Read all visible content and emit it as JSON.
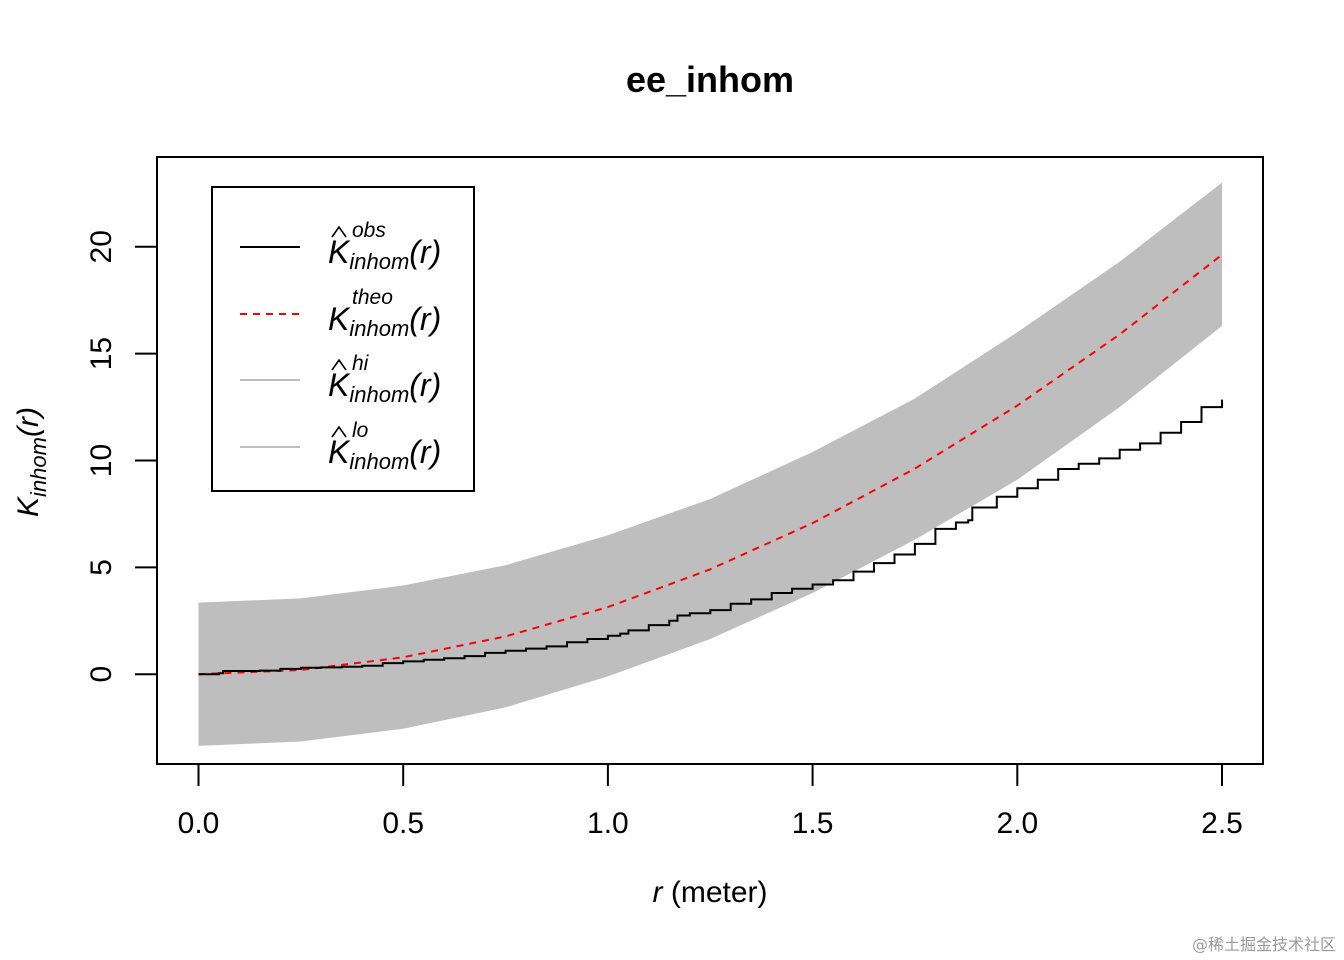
{
  "chart_data": {
    "type": "line",
    "title": "ee_inhom",
    "xlabel_var": "r",
    "xlabel_unit": " (meter)",
    "ylabel_main": "K",
    "ylabel_sub": "inhom",
    "ylabel_arg": "(r)",
    "xlim": [
      0,
      2.5
    ],
    "ylim": [
      -4.2,
      24.2
    ],
    "x_ticks": [
      0,
      0.5,
      1.0,
      1.5,
      2.0,
      2.5
    ],
    "x_tick_labels": [
      "0.0",
      "0.5",
      "1.0",
      "1.5",
      "2.0",
      "2.5"
    ],
    "y_ticks": [
      0,
      5,
      10,
      15,
      20
    ],
    "y_tick_labels": [
      "0",
      "5",
      "10",
      "15",
      "20"
    ],
    "band_color": "#bebebe",
    "legend_position": "top-left",
    "series": [
      {
        "name": "obs",
        "color": "#000000",
        "dash": "solid",
        "x": [
          0,
          0.04,
          0.05,
          0.06,
          0.1,
          0.15,
          0.2,
          0.25,
          0.3,
          0.35,
          0.4,
          0.45,
          0.5,
          0.55,
          0.6,
          0.65,
          0.7,
          0.75,
          0.8,
          0.85,
          0.9,
          0.95,
          1.0,
          1.03,
          1.05,
          1.1,
          1.15,
          1.17,
          1.2,
          1.25,
          1.3,
          1.35,
          1.4,
          1.45,
          1.5,
          1.55,
          1.6,
          1.65,
          1.7,
          1.75,
          1.8,
          1.85,
          1.88,
          1.89,
          1.95,
          2.0,
          2.05,
          2.1,
          2.15,
          2.2,
          2.25,
          2.3,
          2.35,
          2.4,
          2.45,
          2.5
        ],
        "values": [
          0,
          0,
          0.05,
          0.15,
          0.15,
          0.17,
          0.25,
          0.3,
          0.32,
          0.35,
          0.4,
          0.52,
          0.6,
          0.68,
          0.75,
          0.85,
          1.0,
          1.1,
          1.2,
          1.3,
          1.5,
          1.65,
          1.8,
          1.9,
          2.05,
          2.3,
          2.5,
          2.75,
          2.85,
          3.0,
          3.3,
          3.5,
          3.8,
          4.0,
          4.2,
          4.4,
          4.8,
          5.2,
          5.6,
          6.1,
          6.8,
          7.1,
          7.2,
          7.8,
          8.3,
          8.7,
          9.1,
          9.6,
          9.85,
          10.1,
          10.5,
          10.8,
          11.3,
          11.8,
          12.5,
          12.85
        ]
      },
      {
        "name": "theo",
        "color": "#ff0000",
        "dash": "dashed",
        "x": [
          0,
          0.25,
          0.5,
          0.75,
          1.0,
          1.25,
          1.5,
          1.75,
          2.0,
          2.25,
          2.5
        ],
        "values": [
          0,
          0.2,
          0.79,
          1.77,
          3.14,
          4.91,
          7.07,
          9.62,
          12.57,
          15.9,
          19.63
        ]
      },
      {
        "name": "hi",
        "color": "#bebebe",
        "dash": "solid",
        "x": [
          0,
          0.25,
          0.5,
          0.75,
          1.0,
          1.25,
          1.5,
          1.75,
          2.0,
          2.25,
          2.5
        ],
        "values": [
          3.35,
          3.55,
          4.15,
          5.1,
          6.5,
          8.2,
          10.4,
          12.9,
          16.0,
          19.3,
          23.0
        ]
      },
      {
        "name": "lo",
        "color": "#bebebe",
        "dash": "solid",
        "x": [
          0,
          0.25,
          0.5,
          0.75,
          1.0,
          1.25,
          1.5,
          1.75,
          2.0,
          2.25,
          2.5
        ],
        "values": [
          -3.35,
          -3.15,
          -2.55,
          -1.55,
          -0.1,
          1.65,
          3.8,
          6.3,
          9.1,
          12.5,
          16.3
        ]
      }
    ],
    "legend": [
      {
        "main": "K",
        "hat": true,
        "sub": "inhom",
        "sup": "obs",
        "arg": "(r)",
        "color": "#000000",
        "dash": "solid"
      },
      {
        "main": "K",
        "hat": false,
        "sub": "inhom",
        "sup": "theo",
        "arg": "(r)",
        "color": "#ff0000",
        "dash": "dashed"
      },
      {
        "main": "K",
        "hat": true,
        "sub": "inhom",
        "sup": "hi",
        "arg": "(r)",
        "color": "#bebebe",
        "dash": "solid"
      },
      {
        "main": "K",
        "hat": true,
        "sub": "inhom",
        "sup": "lo",
        "arg": "(r)",
        "color": "#bebebe",
        "dash": "solid"
      }
    ]
  },
  "watermark": "@稀土掘金技术社区"
}
